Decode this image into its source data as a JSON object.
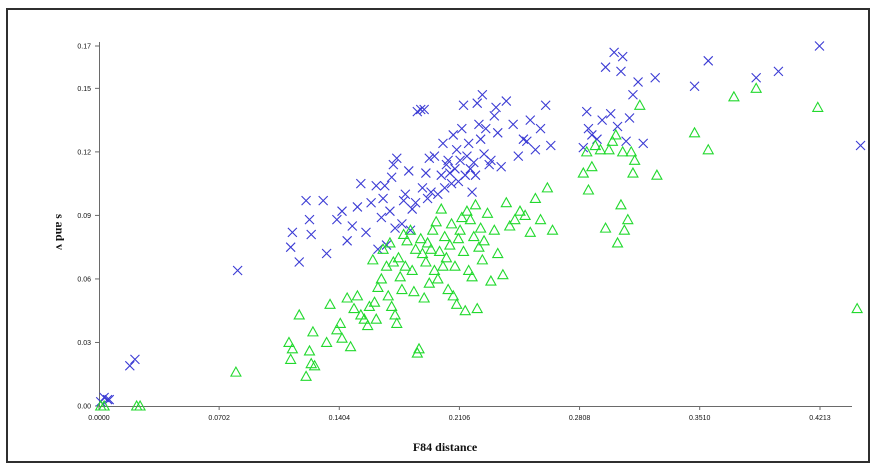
{
  "chart_data": {
    "type": "scatter",
    "title": "",
    "xlabel": "F84 distance",
    "ylabel": "s and v",
    "xlim": [
      0,
      0.44
    ],
    "ylim": [
      0,
      0.17
    ],
    "x_ticks": [
      "0.0000",
      "0.0702",
      "0.1404",
      "0.2106",
      "0.2808",
      "0.3510",
      "0.4213"
    ],
    "x_tick_values": [
      0,
      0.0702,
      0.1404,
      0.2106,
      0.2808,
      0.351,
      0.4213
    ],
    "y_ticks": [
      "0.00",
      "0.03",
      "0.06",
      "0.09",
      "0.12",
      "0.15",
      "0.17"
    ],
    "y_tick_values": [
      0,
      0.03,
      0.06,
      0.09,
      0.12,
      0.15,
      0.17
    ],
    "grid": false,
    "series": [
      {
        "marker": "x",
        "color": "#3b3bd4",
        "points": [
          [
            0.001,
            0.002
          ],
          [
            0.003,
            0.004
          ],
          [
            0.005,
            0.003
          ],
          [
            0.006,
            0.003
          ],
          [
            0.018,
            0.019
          ],
          [
            0.021,
            0.022
          ],
          [
            0.081,
            0.064
          ],
          [
            0.112,
            0.075
          ],
          [
            0.113,
            0.082
          ],
          [
            0.117,
            0.068
          ],
          [
            0.121,
            0.097
          ],
          [
            0.123,
            0.088
          ],
          [
            0.124,
            0.081
          ],
          [
            0.131,
            0.097
          ],
          [
            0.133,
            0.072
          ],
          [
            0.139,
            0.088
          ],
          [
            0.142,
            0.092
          ],
          [
            0.145,
            0.078
          ],
          [
            0.148,
            0.085
          ],
          [
            0.151,
            0.094
          ],
          [
            0.153,
            0.105
          ],
          [
            0.156,
            0.082
          ],
          [
            0.159,
            0.096
          ],
          [
            0.162,
            0.104
          ],
          [
            0.163,
            0.074
          ],
          [
            0.165,
            0.089
          ],
          [
            0.166,
            0.098
          ],
          [
            0.167,
            0.104
          ],
          [
            0.168,
            0.076
          ],
          [
            0.17,
            0.092
          ],
          [
            0.171,
            0.108
          ],
          [
            0.172,
            0.114
          ],
          [
            0.173,
            0.084
          ],
          [
            0.174,
            0.117
          ],
          [
            0.177,
            0.086
          ],
          [
            0.178,
            0.097
          ],
          [
            0.179,
            0.1
          ],
          [
            0.181,
            0.111
          ],
          [
            0.182,
            0.083
          ],
          [
            0.183,
            0.093
          ],
          [
            0.185,
            0.096
          ],
          [
            0.186,
            0.139
          ],
          [
            0.188,
            0.14
          ],
          [
            0.189,
            0.103
          ],
          [
            0.19,
            0.14
          ],
          [
            0.191,
            0.11
          ],
          [
            0.192,
            0.098
          ],
          [
            0.193,
            0.117
          ],
          [
            0.194,
            0.101
          ],
          [
            0.196,
            0.118
          ],
          [
            0.198,
            0.1
          ],
          [
            0.2,
            0.109
          ],
          [
            0.201,
            0.124
          ],
          [
            0.202,
            0.103
          ],
          [
            0.203,
            0.114
          ],
          [
            0.204,
            0.116
          ],
          [
            0.205,
            0.11
          ],
          [
            0.206,
            0.105
          ],
          [
            0.207,
            0.128
          ],
          [
            0.208,
            0.112
          ],
          [
            0.209,
            0.121
          ],
          [
            0.21,
            0.106
          ],
          [
            0.211,
            0.116
          ],
          [
            0.212,
            0.131
          ],
          [
            0.213,
            0.142
          ],
          [
            0.214,
            0.109
          ],
          [
            0.215,
            0.118
          ],
          [
            0.216,
            0.124
          ],
          [
            0.217,
            0.112
          ],
          [
            0.218,
            0.101
          ],
          [
            0.219,
            0.115
          ],
          [
            0.22,
            0.109
          ],
          [
            0.221,
            0.143
          ],
          [
            0.222,
            0.133
          ],
          [
            0.223,
            0.126
          ],
          [
            0.224,
            0.147
          ],
          [
            0.225,
            0.119
          ],
          [
            0.226,
            0.131
          ],
          [
            0.228,
            0.114
          ],
          [
            0.229,
            0.116
          ],
          [
            0.231,
            0.137
          ],
          [
            0.232,
            0.141
          ],
          [
            0.233,
            0.129
          ],
          [
            0.235,
            0.113
          ],
          [
            0.238,
            0.144
          ],
          [
            0.242,
            0.133
          ],
          [
            0.245,
            0.118
          ],
          [
            0.248,
            0.126
          ],
          [
            0.25,
            0.125
          ],
          [
            0.252,
            0.135
          ],
          [
            0.255,
            0.121
          ],
          [
            0.258,
            0.131
          ],
          [
            0.261,
            0.142
          ],
          [
            0.264,
            0.123
          ],
          [
            0.283,
            0.122
          ],
          [
            0.285,
            0.139
          ],
          [
            0.286,
            0.131
          ],
          [
            0.288,
            0.128
          ],
          [
            0.291,
            0.126
          ],
          [
            0.294,
            0.135
          ],
          [
            0.296,
            0.16
          ],
          [
            0.299,
            0.138
          ],
          [
            0.301,
            0.167
          ],
          [
            0.303,
            0.132
          ],
          [
            0.305,
            0.158
          ],
          [
            0.306,
            0.165
          ],
          [
            0.308,
            0.125
          ],
          [
            0.31,
            0.136
          ],
          [
            0.312,
            0.147
          ],
          [
            0.315,
            0.153
          ],
          [
            0.318,
            0.124
          ],
          [
            0.325,
            0.155
          ],
          [
            0.348,
            0.151
          ],
          [
            0.356,
            0.163
          ],
          [
            0.384,
            0.155
          ],
          [
            0.397,
            0.158
          ],
          [
            0.421,
            0.17
          ],
          [
            0.445,
            0.123
          ]
        ]
      },
      {
        "marker": "triangle",
        "color": "#22d92e",
        "points": [
          [
            0.001,
            0.0
          ],
          [
            0.003,
            0.0
          ],
          [
            0.022,
            0.0
          ],
          [
            0.024,
            0.0
          ],
          [
            0.08,
            0.016
          ],
          [
            0.111,
            0.03
          ],
          [
            0.112,
            0.022
          ],
          [
            0.113,
            0.027
          ],
          [
            0.117,
            0.043
          ],
          [
            0.121,
            0.014
          ],
          [
            0.123,
            0.026
          ],
          [
            0.124,
            0.02
          ],
          [
            0.125,
            0.035
          ],
          [
            0.126,
            0.019
          ],
          [
            0.133,
            0.03
          ],
          [
            0.135,
            0.048
          ],
          [
            0.139,
            0.036
          ],
          [
            0.141,
            0.039
          ],
          [
            0.142,
            0.032
          ],
          [
            0.145,
            0.051
          ],
          [
            0.147,
            0.028
          ],
          [
            0.149,
            0.046
          ],
          [
            0.151,
            0.052
          ],
          [
            0.153,
            0.043
          ],
          [
            0.155,
            0.041
          ],
          [
            0.157,
            0.038
          ],
          [
            0.158,
            0.047
          ],
          [
            0.16,
            0.069
          ],
          [
            0.161,
            0.049
          ],
          [
            0.162,
            0.041
          ],
          [
            0.163,
            0.056
          ],
          [
            0.165,
            0.06
          ],
          [
            0.166,
            0.074
          ],
          [
            0.168,
            0.066
          ],
          [
            0.169,
            0.052
          ],
          [
            0.17,
            0.077
          ],
          [
            0.171,
            0.047
          ],
          [
            0.172,
            0.068
          ],
          [
            0.173,
            0.043
          ],
          [
            0.174,
            0.039
          ],
          [
            0.175,
            0.07
          ],
          [
            0.176,
            0.061
          ],
          [
            0.177,
            0.055
          ],
          [
            0.178,
            0.081
          ],
          [
            0.179,
            0.066
          ],
          [
            0.18,
            0.078
          ],
          [
            0.182,
            0.083
          ],
          [
            0.183,
            0.064
          ],
          [
            0.184,
            0.054
          ],
          [
            0.185,
            0.074
          ],
          [
            0.186,
            0.025
          ],
          [
            0.187,
            0.027
          ],
          [
            0.188,
            0.079
          ],
          [
            0.189,
            0.072
          ],
          [
            0.19,
            0.051
          ],
          [
            0.191,
            0.068
          ],
          [
            0.192,
            0.077
          ],
          [
            0.193,
            0.058
          ],
          [
            0.194,
            0.074
          ],
          [
            0.195,
            0.083
          ],
          [
            0.196,
            0.064
          ],
          [
            0.197,
            0.087
          ],
          [
            0.198,
            0.06
          ],
          [
            0.199,
            0.073
          ],
          [
            0.2,
            0.093
          ],
          [
            0.201,
            0.066
          ],
          [
            0.202,
            0.08
          ],
          [
            0.203,
            0.07
          ],
          [
            0.204,
            0.055
          ],
          [
            0.205,
            0.076
          ],
          [
            0.206,
            0.086
          ],
          [
            0.207,
            0.052
          ],
          [
            0.208,
            0.066
          ],
          [
            0.209,
            0.048
          ],
          [
            0.21,
            0.079
          ],
          [
            0.211,
            0.083
          ],
          [
            0.212,
            0.089
          ],
          [
            0.213,
            0.073
          ],
          [
            0.214,
            0.045
          ],
          [
            0.215,
            0.092
          ],
          [
            0.216,
            0.064
          ],
          [
            0.217,
            0.088
          ],
          [
            0.218,
            0.061
          ],
          [
            0.219,
            0.08
          ],
          [
            0.22,
            0.095
          ],
          [
            0.221,
            0.046
          ],
          [
            0.222,
            0.075
          ],
          [
            0.223,
            0.084
          ],
          [
            0.224,
            0.069
          ],
          [
            0.225,
            0.078
          ],
          [
            0.227,
            0.091
          ],
          [
            0.229,
            0.059
          ],
          [
            0.231,
            0.083
          ],
          [
            0.233,
            0.072
          ],
          [
            0.236,
            0.062
          ],
          [
            0.238,
            0.096
          ],
          [
            0.24,
            0.085
          ],
          [
            0.243,
            0.088
          ],
          [
            0.246,
            0.092
          ],
          [
            0.249,
            0.09
          ],
          [
            0.252,
            0.082
          ],
          [
            0.255,
            0.098
          ],
          [
            0.258,
            0.088
          ],
          [
            0.262,
            0.103
          ],
          [
            0.265,
            0.083
          ],
          [
            0.283,
            0.11
          ],
          [
            0.285,
            0.12
          ],
          [
            0.286,
            0.102
          ],
          [
            0.288,
            0.113
          ],
          [
            0.29,
            0.123
          ],
          [
            0.293,
            0.121
          ],
          [
            0.296,
            0.084
          ],
          [
            0.298,
            0.121
          ],
          [
            0.3,
            0.125
          ],
          [
            0.302,
            0.128
          ],
          [
            0.303,
            0.077
          ],
          [
            0.305,
            0.095
          ],
          [
            0.306,
            0.12
          ],
          [
            0.307,
            0.083
          ],
          [
            0.309,
            0.088
          ],
          [
            0.311,
            0.12
          ],
          [
            0.312,
            0.11
          ],
          [
            0.313,
            0.116
          ],
          [
            0.316,
            0.142
          ],
          [
            0.326,
            0.109
          ],
          [
            0.348,
            0.129
          ],
          [
            0.356,
            0.121
          ],
          [
            0.371,
            0.146
          ],
          [
            0.384,
            0.15
          ],
          [
            0.42,
            0.141
          ],
          [
            0.443,
            0.046
          ]
        ]
      }
    ]
  }
}
